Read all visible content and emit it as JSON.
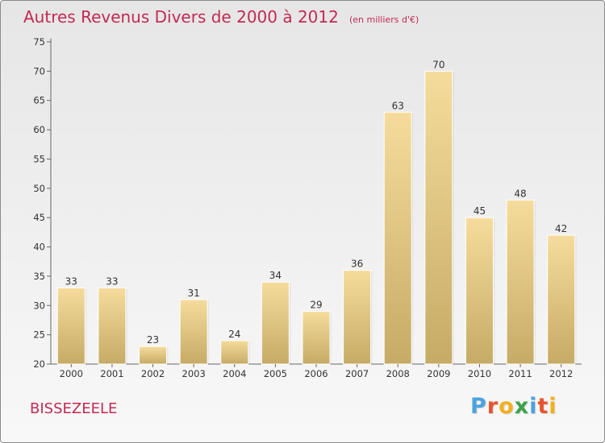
{
  "header": {
    "title": "Autres Revenus Divers de 2000 à 2012",
    "subtitle": "(en milliers d'€)"
  },
  "footer": {
    "commune": "BISSEZEELE",
    "logo_text": "Proxiti"
  },
  "colors": {
    "title": "#c22a53",
    "bar_top": "#f6dc9c",
    "bar_bottom": "#c6ab66",
    "logo": [
      "#4aa3df",
      "#e8542f",
      "#f2b01e",
      "#3aa34a",
      "#4aa3df",
      "#e8542f",
      "#f2b01e"
    ]
  },
  "chart_data": {
    "type": "bar",
    "categories": [
      "2000",
      "2001",
      "2002",
      "2003",
      "2004",
      "2005",
      "2006",
      "2007",
      "2008",
      "2009",
      "2010",
      "2011",
      "2012"
    ],
    "values": [
      33,
      33,
      23,
      31,
      24,
      34,
      29,
      36,
      63,
      70,
      45,
      48,
      42
    ],
    "title": "Autres Revenus Divers de 2000 à 2012",
    "ylim": [
      20,
      75
    ],
    "yticks": [
      20,
      25,
      30,
      35,
      40,
      45,
      50,
      55,
      60,
      65,
      70,
      75
    ],
    "grid": false
  }
}
